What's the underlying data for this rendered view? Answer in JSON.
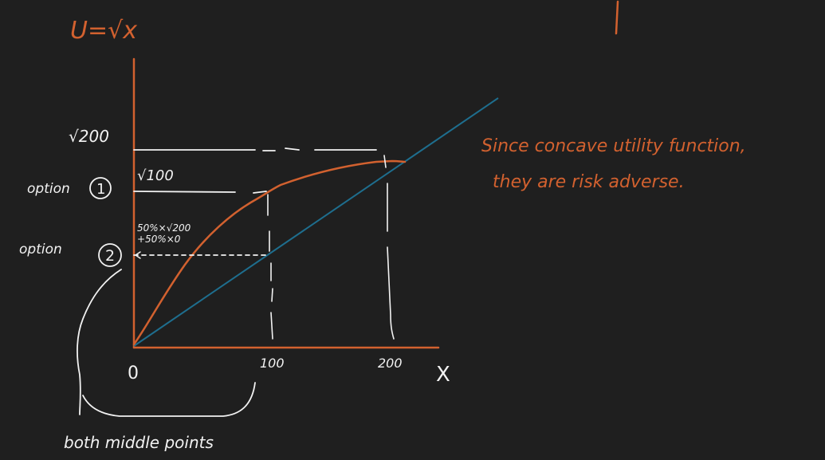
{
  "colors": {
    "background": "#1f1f1f",
    "orange": "#d2612f",
    "white": "#f2f2f2",
    "blue": "#1e6e8e"
  },
  "title": "U=√x",
  "axes": {
    "origin_label": "0",
    "x_axis_label": "X",
    "x_tick_100": "100",
    "x_tick_200": "200",
    "y_tick_sqrt200": "√200",
    "y_tick_sqrt100": "√100"
  },
  "options": {
    "option1_label": "option",
    "option1_number": "1",
    "option2_label": "option",
    "option2_number": "2"
  },
  "formula": {
    "line1": "50%×√200",
    "line2": "+50%×0"
  },
  "note": {
    "line1": "Since concave utility function,",
    "line2": "they are risk adverse."
  },
  "bottom_note": "both middle points"
}
